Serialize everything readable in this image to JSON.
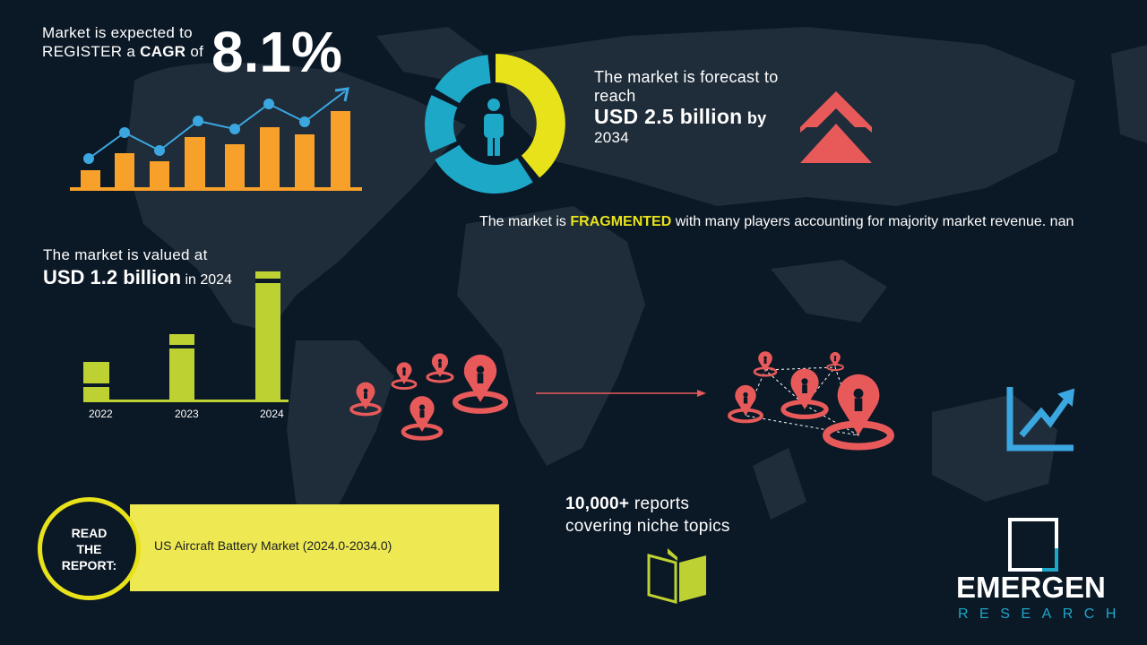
{
  "cagr": {
    "line1": "Market is expected to",
    "line2_prefix": "REGISTER a",
    "line2_bold": "CAGR",
    "line2_suffix": "of",
    "value": "8.1%"
  },
  "forecast": {
    "line1": "The market is forecast to reach",
    "value": "USD 2.5 billion",
    "by": "by",
    "year": "2034"
  },
  "fragmented": {
    "prefix": "The market is",
    "highlight": "FRAGMENTED",
    "suffix": "with many players accounting for majority market revenue. nan"
  },
  "valued": {
    "line1": "The market is valued at",
    "value": "USD 1.2 billion",
    "suffix": "in 2024"
  },
  "value_chart": {
    "years": [
      "2022",
      "2023",
      "2024"
    ]
  },
  "reports": {
    "count": "10,000+",
    "line1_suffix": "reports",
    "line2": "covering niche topics"
  },
  "read_report": {
    "label_lines": [
      "READ",
      "THE",
      "REPORT:"
    ],
    "title": "US Aircraft Battery Market (2024.0-2034.0)"
  },
  "logo": {
    "name": "EMERGEN",
    "sub": "RESEARCH"
  },
  "colors": {
    "background": "#0b1826",
    "map": "#1f2c39",
    "orange": "#f7a12a",
    "blue": "#3ba7e0",
    "yellow": "#e8e21a",
    "teal": "#1ea8c8",
    "red": "#e85a5a",
    "green": "#bdd232",
    "band": "#eee852"
  }
}
